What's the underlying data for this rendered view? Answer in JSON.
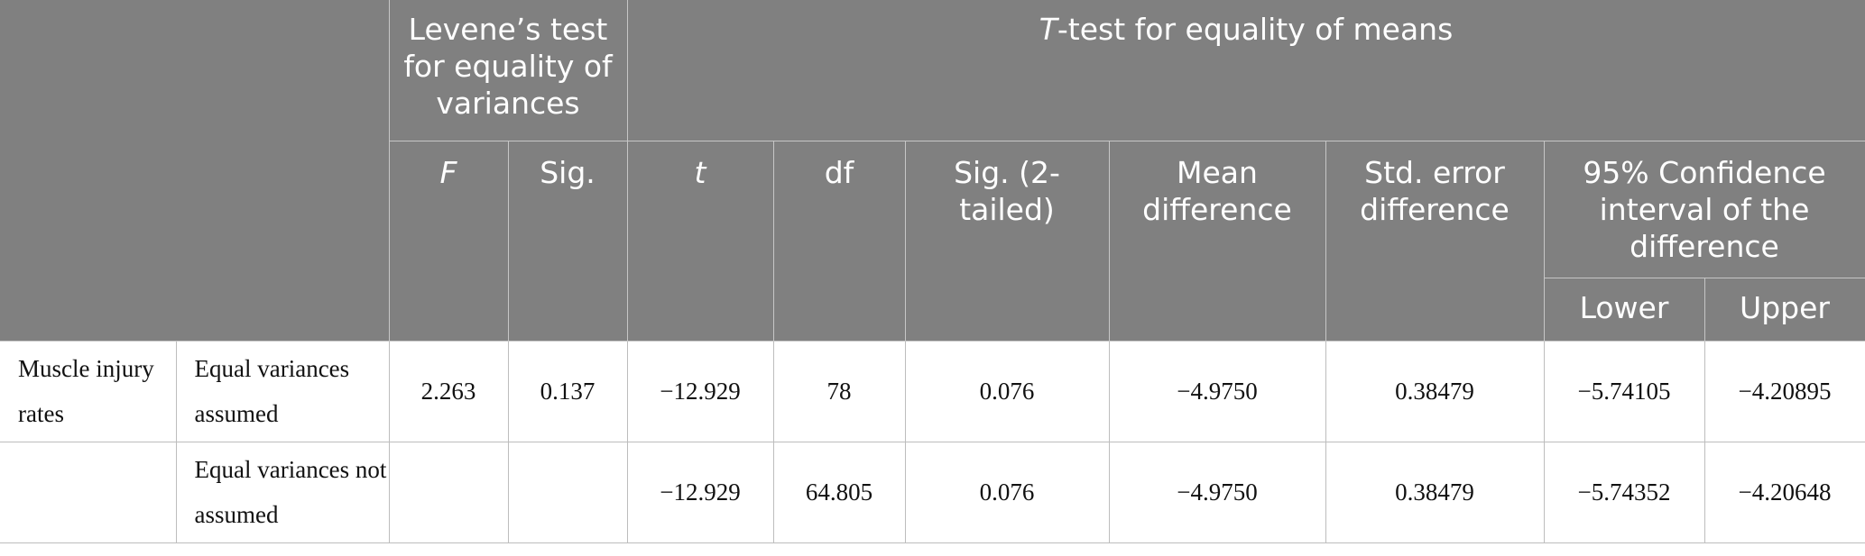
{
  "header": {
    "levene": "Levene’s test for equality of variances",
    "ttest_italic": "T",
    "ttest_rest": "-test for equality of means",
    "col_F": "F",
    "col_sig": "Sig.",
    "col_t": "t",
    "col_df": "df",
    "col_sig2": "Sig. (2-tailed)",
    "col_mean_diff": "Mean difference",
    "col_se_diff": "Std. error difference",
    "col_ci": "95% Confidence interval of the difference",
    "col_lower": "Lower",
    "col_upper": "Upper"
  },
  "rows": [
    {
      "group": "Muscle injury rates",
      "condition": "Equal variances assumed",
      "F": "2.263",
      "sig": "0.137",
      "t": "−12.929",
      "df": "78",
      "sig2": "0.076",
      "mean_diff": "−4.9750",
      "se_diff": "0.38479",
      "lower": "−5.74105",
      "upper": "−4.20895"
    },
    {
      "group": "",
      "condition": "Equal variances not assumed",
      "F": "",
      "sig": "",
      "t": "−12.929",
      "df": "64.805",
      "sig2": "0.076",
      "mean_diff": "−4.9750",
      "se_diff": "0.38479",
      "lower": "−5.74352",
      "upper": "−4.20648"
    }
  ]
}
